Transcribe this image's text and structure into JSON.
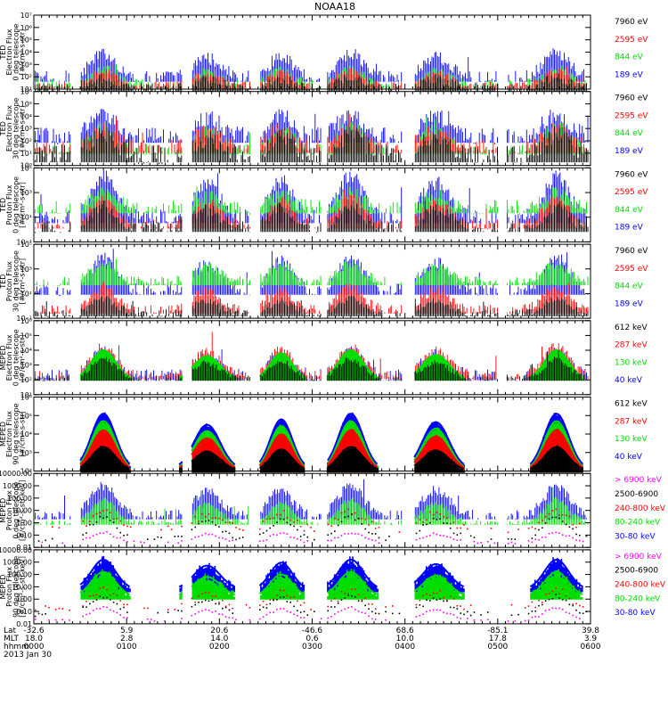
{
  "chart_data": {
    "type": "line",
    "title": "NOAA18",
    "date_label": "2013 Jan 30",
    "xlim": [
      0,
      360
    ],
    "colors": {
      "blue": "#0000ff",
      "red": "#ff0000",
      "green": "#00dd00",
      "black": "#000000",
      "magenta": "#ff00ff"
    },
    "passes": [
      {
        "center": 45,
        "width": 11,
        "amp": 1.0
      },
      {
        "center": 112,
        "width": 12,
        "amp": 0.8
      },
      {
        "center": 160,
        "width": 10,
        "amp": 0.9
      },
      {
        "center": 205,
        "width": 11,
        "amp": 1.0
      },
      {
        "center": 260,
        "width": 12,
        "amp": 0.85
      },
      {
        "center": 338,
        "width": 11,
        "amp": 1.0
      }
    ],
    "panels": [
      {
        "id": "ted-electron-0",
        "ylabel": [
          "TED",
          "Electron Flux",
          "0 deg telescope",
          "[#/cm²-s-str]"
        ],
        "ylog": true,
        "ylim": [
          1,
          7
        ],
        "yticks": [
          {
            "v": 1,
            "t": "10¹"
          },
          {
            "v": 2,
            "t": "10²"
          },
          {
            "v": 3,
            "t": "10³"
          },
          {
            "v": 4,
            "t": "10⁴"
          },
          {
            "v": 5,
            "t": "10⁵"
          },
          {
            "v": 6,
            "t": "10⁶"
          },
          {
            "v": 7,
            "t": "10⁷"
          }
        ],
        "legend": [
          {
            "text": "7960 eV",
            "color": "#000000"
          },
          {
            "text": "2595 eV",
            "color": "#ff0000"
          },
          {
            "text": "844 eV",
            "color": "#00dd00"
          },
          {
            "text": "189 eV",
            "color": "#0000ff"
          }
        ],
        "series": [
          {
            "color": "#0000ff",
            "base": 2.0,
            "peak": 3.9,
            "noise": 0.5,
            "style": "lines"
          },
          {
            "color": "#00dd00",
            "base": 1.4,
            "peak": 2.6,
            "noise": 0.4,
            "style": "lines"
          },
          {
            "color": "#ff0000",
            "base": 1.3,
            "peak": 2.5,
            "noise": 0.3,
            "style": "lines"
          },
          {
            "color": "#000000",
            "base": 1.1,
            "peak": 1.9,
            "noise": 0.4,
            "style": "lines"
          }
        ]
      },
      {
        "id": "ted-electron-30",
        "ylabel": [
          "TED",
          "Electron Flux",
          "30 deg telescope",
          "[#/cm²-s-str]"
        ],
        "ylog": true,
        "ylim": [
          0,
          6
        ],
        "yticks": [
          {
            "v": 0,
            "t": "10⁰"
          },
          {
            "v": 1,
            "t": "10¹"
          },
          {
            "v": 2,
            "t": "10²"
          },
          {
            "v": 3,
            "t": "10³"
          },
          {
            "v": 4,
            "t": "10⁴"
          },
          {
            "v": 5,
            "t": "10⁵"
          },
          {
            "v": 6,
            "t": "10⁶"
          }
        ],
        "legend": [
          {
            "text": "7960 eV",
            "color": "#000000"
          },
          {
            "text": "2595 eV",
            "color": "#ff0000"
          },
          {
            "text": "844 eV",
            "color": "#00dd00"
          },
          {
            "text": "189 eV",
            "color": "#0000ff"
          }
        ],
        "series": [
          {
            "color": "#0000ff",
            "base": 2.4,
            "peak": 4.2,
            "noise": 0.7,
            "style": "lines"
          },
          {
            "color": "#00dd00",
            "base": 1.3,
            "peak": 3.2,
            "noise": 0.5,
            "style": "lines"
          },
          {
            "color": "#ff0000",
            "base": 1.5,
            "peak": 3.1,
            "noise": 0.6,
            "style": "lines"
          },
          {
            "color": "#000000",
            "base": 0.9,
            "peak": 2.6,
            "noise": 0.8,
            "style": "lines"
          }
        ]
      },
      {
        "id": "ted-proton-0",
        "ylabel": [
          "TED",
          "Proton Flux",
          "0 deg telescope",
          "[#/cm²-s-str]"
        ],
        "ylog": true,
        "ylim": [
          -1,
          5
        ],
        "yticks": [
          {
            "v": -1,
            "t": "10⁻¹"
          },
          {
            "v": 1,
            "t": "10¹"
          },
          {
            "v": 3,
            "t": "10³"
          },
          {
            "v": 5,
            "t": "10⁵"
          }
        ],
        "legend": [
          {
            "text": "7960 eV",
            "color": "#000000"
          },
          {
            "text": "2595 eV",
            "color": "#ff0000"
          },
          {
            "text": "844 eV",
            "color": "#00dd00"
          },
          {
            "text": "189 eV",
            "color": "#0000ff"
          }
        ],
        "series": [
          {
            "color": "#0000ff",
            "base": 1.0,
            "peak": 4.3,
            "noise": 0.6,
            "style": "lines"
          },
          {
            "color": "#00dd00",
            "base": 1.8,
            "peak": 2.9,
            "noise": 0.6,
            "style": "lines"
          },
          {
            "color": "#ff0000",
            "base": 0.4,
            "peak": 2.6,
            "noise": 0.4,
            "style": "lines"
          },
          {
            "color": "#000000",
            "base": 0.2,
            "peak": 1.9,
            "noise": 0.5,
            "style": "lines"
          }
        ]
      },
      {
        "id": "ted-proton-30",
        "ylabel": [
          "TED",
          "Proton Flux",
          "30 deg telescope",
          "[#/cm²-s-str]"
        ],
        "ylog": true,
        "ylim": [
          -1,
          5
        ],
        "yticks": [
          {
            "v": -1,
            "t": "10⁻¹"
          },
          {
            "v": 1,
            "t": "10¹"
          },
          {
            "v": 3,
            "t": "10³"
          },
          {
            "v": 5,
            "t": "10⁵"
          }
        ],
        "legend": [
          {
            "text": "7960 eV",
            "color": "#000000"
          },
          {
            "text": "2595 eV",
            "color": "#ff0000"
          },
          {
            "text": "844 eV",
            "color": "#00dd00"
          },
          {
            "text": "189 eV",
            "color": "#0000ff"
          }
        ],
        "series": [
          {
            "color": "#0000ff",
            "base": 1.3,
            "peak": 3.9,
            "noise": 0.5,
            "style": "lines"
          },
          {
            "color": "#00dd00",
            "base": 2.0,
            "peak": 3.4,
            "noise": 0.4,
            "style": "lines"
          },
          {
            "color": "#ff0000",
            "base": -0.3,
            "peak": 1.6,
            "noise": 0.4,
            "style": "lines"
          },
          {
            "color": "#000000",
            "base": -0.6,
            "peak": 0.6,
            "noise": 0.3,
            "style": "lines"
          }
        ]
      },
      {
        "id": "meped-electron-0",
        "ylabel": [
          "MEPED",
          "Electron Flux",
          "0 deg telescope",
          "[#/cm²-s-str]"
        ],
        "ylog": true,
        "ylim": [
          1,
          6
        ],
        "yticks": [
          {
            "v": 1,
            "t": "10¹"
          },
          {
            "v": 2,
            "t": "10²"
          },
          {
            "v": 3,
            "t": "10³"
          },
          {
            "v": 4,
            "t": "10⁴"
          },
          {
            "v": 5,
            "t": "10⁵"
          },
          {
            "v": 6,
            "t": "10⁶"
          }
        ],
        "legend": [
          {
            "text": "612 keV",
            "color": "#000000"
          },
          {
            "text": "287 keV",
            "color": "#ff0000"
          },
          {
            "text": "130 keV",
            "color": "#00dd00"
          },
          {
            "text": "40 keV",
            "color": "#0000ff"
          }
        ],
        "series": [
          {
            "color": "#0000ff",
            "base": 2.3,
            "peak": 4.0,
            "noise": 0.4,
            "style": "lines"
          },
          {
            "color": "#ff0000",
            "base": 2.3,
            "peak": 4.3,
            "noise": 0.3,
            "style": "lines"
          },
          {
            "color": "#00dd00",
            "base": 2.0,
            "peak": 4.0,
            "noise": 0.05,
            "style": "thick"
          },
          {
            "color": "#000000",
            "base": 2.1,
            "peak": 3.4,
            "noise": 0.2,
            "style": "lines"
          }
        ]
      },
      {
        "id": "meped-electron-90",
        "ylabel": [
          "MEPED",
          "Electron Flux",
          "90 deg telescope",
          "[#/cm²-s-str]"
        ],
        "ylog": true,
        "ylim": [
          2,
          6
        ],
        "yticks": [
          {
            "v": 2,
            "t": "10²"
          },
          {
            "v": 3,
            "t": "10³"
          },
          {
            "v": 4,
            "t": "10⁴"
          },
          {
            "v": 5,
            "t": "10⁵"
          },
          {
            "v": 6,
            "t": "10⁶"
          }
        ],
        "legend": [
          {
            "text": "612 keV",
            "color": "#000000"
          },
          {
            "text": "287 keV",
            "color": "#ff0000"
          },
          {
            "text": "130 keV",
            "color": "#00dd00"
          },
          {
            "text": "40 keV",
            "color": "#0000ff"
          }
        ],
        "series": [
          {
            "color": "#0000ff",
            "base": 2.1,
            "peak": 5.1,
            "noise": 0.1,
            "style": "hump"
          },
          {
            "color": "#00dd00",
            "base": 2.0,
            "peak": 4.7,
            "noise": 0.1,
            "style": "hump"
          },
          {
            "color": "#ff0000",
            "base": 2.0,
            "peak": 4.2,
            "noise": 0.1,
            "style": "hump"
          },
          {
            "color": "#000000",
            "base": 2.0,
            "peak": 3.3,
            "noise": 0.1,
            "style": "thick"
          }
        ]
      },
      {
        "id": "meped-proton-0",
        "ylabel": [
          "MEPED",
          "Proton Flux",
          "0 deg telescope",
          "[#/cm²-s-str-keV]"
        ],
        "ylog": true,
        "ylim": [
          -2,
          4
        ],
        "yticks": [
          {
            "v": -2,
            "t": "0.01"
          },
          {
            "v": -1,
            "t": "0.10"
          },
          {
            "v": 0,
            "t": "1.00"
          },
          {
            "v": 1,
            "t": "10.00"
          },
          {
            "v": 2,
            "t": "100.00"
          },
          {
            "v": 3,
            "t": "1000.00"
          },
          {
            "v": 4,
            "t": "10000.00"
          }
        ],
        "legend": [
          {
            "text": "> 6900 keV",
            "color": "#ff00ff"
          },
          {
            "text": "2500-6900",
            "color": "#000000"
          },
          {
            "text": "240-800 keV",
            "color": "#ff0000"
          },
          {
            "text": "80-240 keV",
            "color": "#00dd00"
          },
          {
            "text": "30-80 keV",
            "color": "#0000ff"
          }
        ],
        "series": [
          {
            "color": "#0000ff",
            "base": 0.6,
            "peak": 3.0,
            "noise": 0.4,
            "style": "lines"
          },
          {
            "color": "#00dd00",
            "base": 0.0,
            "peak": 1.9,
            "noise": 0.2,
            "style": "lines"
          },
          {
            "color": "#ff0000",
            "base": -0.5,
            "peak": 0.9,
            "noise": 0.3,
            "style": "dots"
          },
          {
            "color": "#000000",
            "base": -1.3,
            "peak": 0.5,
            "noise": 0.2,
            "style": "dots"
          },
          {
            "color": "#ff00ff",
            "base": -1.6,
            "peak": -0.8,
            "noise": 0.1,
            "style": "dots"
          }
        ]
      },
      {
        "id": "meped-proton-90",
        "ylabel": [
          "MEPED",
          "Proton Flux",
          "90 deg telescope",
          "[#/cm²-s-str-keV]"
        ],
        "ylog": true,
        "ylim": [
          -2,
          4
        ],
        "yticks": [
          {
            "v": -2,
            "t": "0.01"
          },
          {
            "v": -1,
            "t": "0.10"
          },
          {
            "v": 0,
            "t": "1.00"
          },
          {
            "v": 1,
            "t": "10.00"
          },
          {
            "v": 2,
            "t": "100.00"
          },
          {
            "v": 3,
            "t": "1000.00"
          },
          {
            "v": 4,
            "t": "10000.00"
          }
        ],
        "legend": [
          {
            "text": "> 6900 keV",
            "color": "#ff00ff"
          },
          {
            "text": "2500-6900",
            "color": "#000000"
          },
          {
            "text": "240-800 keV",
            "color": "#ff0000"
          },
          {
            "text": "80-240 keV",
            "color": "#00dd00"
          },
          {
            "text": "30-80 keV",
            "color": "#0000ff"
          }
        ],
        "series": [
          {
            "color": "#0000ff",
            "base": 0.8,
            "peak": 3.2,
            "noise": 0.3,
            "style": "hump"
          },
          {
            "color": "#00dd00",
            "base": 0.2,
            "peak": 2.2,
            "noise": 0.3,
            "style": "hump"
          },
          {
            "color": "#ff0000",
            "base": -0.7,
            "peak": 0.7,
            "noise": 0.3,
            "style": "dots"
          },
          {
            "color": "#000000",
            "base": -1.2,
            "peak": 0.3,
            "noise": 0.2,
            "style": "dots"
          },
          {
            "color": "#ff00ff",
            "base": -1.7,
            "peak": -0.7,
            "noise": 0.1,
            "style": "dots"
          }
        ]
      }
    ],
    "xaxis": {
      "row_labels": [
        "Lat",
        "MLT",
        "hhmm"
      ],
      "ticks": [
        {
          "x": 0,
          "lat": "-32.6",
          "mlt": "18.0",
          "hhmm": "0000"
        },
        {
          "x": 60,
          "lat": "5.9",
          "mlt": "2.8",
          "hhmm": "0100"
        },
        {
          "x": 120,
          "lat": "20.6",
          "mlt": "14.0",
          "hhmm": "0200"
        },
        {
          "x": 180,
          "lat": "-46.6",
          "mlt": "0.6",
          "hhmm": "0300"
        },
        {
          "x": 240,
          "lat": "68.6",
          "mlt": "10.0",
          "hhmm": "0400"
        },
        {
          "x": 300,
          "lat": "-85.1",
          "mlt": "17.8",
          "hhmm": "0500"
        },
        {
          "x": 360,
          "lat": "39.8",
          "mlt": "3.9",
          "hhmm": "0600"
        }
      ]
    }
  }
}
